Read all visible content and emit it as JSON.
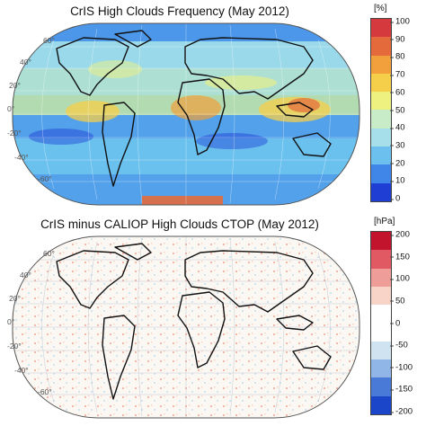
{
  "panels": [
    {
      "title": "CrIS High Clouds Frequency (May 2012)",
      "unit": "[%]",
      "ticks": [
        "100",
        "90",
        "80",
        "70",
        "60",
        "50",
        "40",
        "30",
        "20",
        "10",
        "0"
      ],
      "colorscale": [
        "#1f3fd4",
        "#3f86e8",
        "#6cc0ee",
        "#a6dfe9",
        "#c9ecc8",
        "#eef17f",
        "#f6cf4a",
        "#f1a03b",
        "#e46a3c",
        "#d6393d"
      ],
      "lat_labels": [
        "60°",
        "40°",
        "20°",
        "0°",
        "-20°",
        "-40°",
        "-60°"
      ]
    },
    {
      "title": "CrIS minus CALIOP High Clouds CTOP (May 2012)",
      "unit": "[hPa]",
      "ticks": [
        "200",
        "150",
        "100",
        "50",
        "0",
        "-50",
        "-100",
        "-150",
        "-200"
      ],
      "colorscale": [
        "#1b46c9",
        "#4a7ad8",
        "#8fb6e6",
        "#cfe3f1",
        "#ffffff",
        "#ffffff",
        "#f7d4c7",
        "#ee9d98",
        "#e15a63",
        "#c2142d"
      ],
      "lat_labels": [
        "60°",
        "40°",
        "20°",
        "0°",
        "-20°",
        "-40°",
        "-60°"
      ]
    }
  ]
}
